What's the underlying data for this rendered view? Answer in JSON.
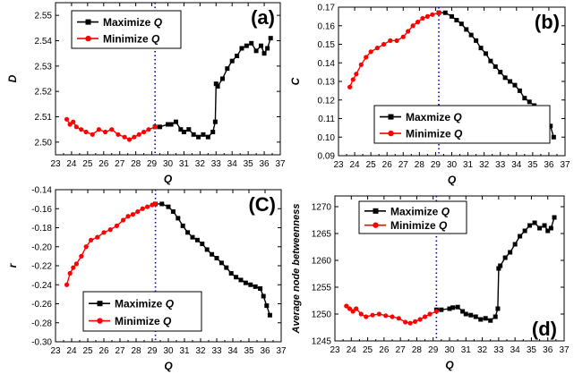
{
  "figure": {
    "colors": {
      "maximize": "#000000",
      "minimize": "#ff0000",
      "divider": "#0000cc",
      "axis": "#000000"
    }
  },
  "chart_data": [
    {
      "type": "line",
      "panel_label": "(a)",
      "xlabel": "Q",
      "ylabel": "D",
      "xlim": [
        23,
        37
      ],
      "ylim": [
        2.495,
        2.555
      ],
      "xticks": [
        23,
        24,
        25,
        26,
        27,
        28,
        29,
        30,
        31,
        32,
        33,
        34,
        35,
        36,
        37
      ],
      "yticks": [
        2.5,
        2.51,
        2.52,
        2.53,
        2.54,
        2.55
      ],
      "ytick_labels": [
        "2.50",
        "2.51",
        "2.52",
        "2.53",
        "2.54",
        "2.55"
      ],
      "divider_x": 29.2,
      "legend_position": "top-left",
      "legend": [
        {
          "label_prefix": "Maximize ",
          "label_var": "Q",
          "series": 0
        },
        {
          "label_prefix": "Minimize ",
          "label_var": "Q",
          "series": 1
        }
      ],
      "series": [
        {
          "name": "Maximize Q",
          "color": "#000000",
          "x": [
            29.2,
            29.5,
            30.0,
            30.2,
            30.5,
            30.8,
            31.0,
            31.3,
            31.6,
            31.9,
            32.2,
            32.5,
            32.8,
            32.95,
            33.0,
            33.1,
            33.4,
            33.7,
            34.0,
            34.3,
            34.6,
            34.9,
            35.2,
            35.5,
            35.8,
            36.0,
            36.2,
            36.4
          ],
          "y": [
            2.506,
            2.506,
            2.507,
            2.507,
            2.508,
            2.505,
            2.504,
            2.505,
            2.503,
            2.502,
            2.503,
            2.502,
            2.504,
            2.508,
            2.523,
            2.522,
            2.525,
            2.529,
            2.532,
            2.534,
            2.537,
            2.538,
            2.539,
            2.536,
            2.538,
            2.535,
            2.537,
            2.541
          ]
        },
        {
          "name": "Minimize Q",
          "color": "#ff0000",
          "x": [
            23.7,
            23.9,
            24.1,
            24.3,
            24.6,
            24.9,
            25.3,
            25.7,
            26.1,
            26.5,
            26.9,
            27.3,
            27.6,
            27.9,
            28.2,
            28.5,
            28.8,
            29.2
          ],
          "y": [
            2.509,
            2.507,
            2.508,
            2.506,
            2.505,
            2.504,
            2.503,
            2.505,
            2.504,
            2.505,
            2.503,
            2.502,
            2.501,
            2.502,
            2.503,
            2.504,
            2.505,
            2.506
          ]
        }
      ]
    },
    {
      "type": "line",
      "panel_label": "(b)",
      "xlabel": "Q",
      "ylabel": "C",
      "xlim": [
        23,
        37
      ],
      "ylim": [
        0.09,
        0.17
      ],
      "xticks": [
        23,
        24,
        25,
        26,
        27,
        28,
        29,
        30,
        31,
        32,
        33,
        34,
        35,
        36,
        37
      ],
      "yticks": [
        0.09,
        0.1,
        0.11,
        0.12,
        0.13,
        0.14,
        0.15,
        0.16,
        0.17
      ],
      "ytick_labels": [
        "0.09",
        "0.10",
        "0.11",
        "0.12",
        "0.13",
        "0.14",
        "0.15",
        "0.16",
        "0.17"
      ],
      "divider_x": 29.2,
      "legend_position": "bottom-right",
      "legend": [
        {
          "label_prefix": "Maxmize ",
          "label_var": "Q",
          "series": 0
        },
        {
          "label_prefix": "Minimize ",
          "label_var": "Q",
          "series": 1
        }
      ],
      "series": [
        {
          "name": "Maxmize Q",
          "color": "#000000",
          "x": [
            29.2,
            29.6,
            30.0,
            30.3,
            30.6,
            30.9,
            31.2,
            31.5,
            31.8,
            32.1,
            32.4,
            32.7,
            33.0,
            33.3,
            33.6,
            33.9,
            34.2,
            34.5,
            34.8,
            35.1,
            35.4,
            35.7,
            35.9,
            36.1,
            36.3
          ],
          "y": [
            0.167,
            0.167,
            0.165,
            0.163,
            0.161,
            0.158,
            0.155,
            0.152,
            0.148,
            0.145,
            0.141,
            0.138,
            0.135,
            0.132,
            0.13,
            0.128,
            0.125,
            0.121,
            0.119,
            0.117,
            0.115,
            0.113,
            0.11,
            0.106,
            0.1
          ]
        },
        {
          "name": "Minimize Q",
          "color": "#ff0000",
          "x": [
            23.7,
            23.9,
            24.1,
            24.4,
            24.7,
            25.0,
            25.4,
            25.8,
            26.2,
            26.6,
            27.0,
            27.3,
            27.6,
            27.9,
            28.2,
            28.5,
            28.8,
            29.2
          ],
          "y": [
            0.127,
            0.131,
            0.134,
            0.139,
            0.143,
            0.146,
            0.148,
            0.15,
            0.152,
            0.152,
            0.154,
            0.157,
            0.16,
            0.162,
            0.164,
            0.165,
            0.166,
            0.167
          ]
        }
      ]
    },
    {
      "type": "line",
      "panel_label": "(C)",
      "xlabel": "Q",
      "ylabel": "r",
      "xlim": [
        23,
        37
      ],
      "ylim": [
        -0.3,
        -0.14
      ],
      "xticks": [
        23,
        24,
        25,
        26,
        27,
        28,
        29,
        30,
        31,
        32,
        33,
        34,
        35,
        36,
        37
      ],
      "yticks": [
        -0.3,
        -0.28,
        -0.26,
        -0.24,
        -0.22,
        -0.2,
        -0.18,
        -0.16,
        -0.14
      ],
      "ytick_labels": [
        "-0.30",
        "-0.28",
        "-0.26",
        "-0.24",
        "-0.22",
        "-0.20",
        "-0.18",
        "-0.16",
        "-0.14"
      ],
      "divider_x": 29.2,
      "legend_position": "bottom-left",
      "legend": [
        {
          "label_prefix": "Maximize ",
          "label_var": "Q",
          "series": 0
        },
        {
          "label_prefix": "Minimize ",
          "label_var": "Q",
          "series": 1
        }
      ],
      "series": [
        {
          "name": "Maximize Q",
          "color": "#000000",
          "x": [
            29.2,
            29.6,
            30.0,
            30.3,
            30.6,
            30.9,
            31.2,
            31.5,
            31.8,
            32.1,
            32.4,
            32.7,
            33.0,
            33.3,
            33.6,
            33.9,
            34.2,
            34.5,
            34.8,
            35.1,
            35.4,
            35.7,
            35.9,
            36.1,
            36.3
          ],
          "y": [
            -0.155,
            -0.155,
            -0.158,
            -0.163,
            -0.17,
            -0.178,
            -0.185,
            -0.19,
            -0.193,
            -0.197,
            -0.203,
            -0.208,
            -0.212,
            -0.217,
            -0.222,
            -0.228,
            -0.232,
            -0.235,
            -0.238,
            -0.24,
            -0.242,
            -0.244,
            -0.252,
            -0.262,
            -0.272
          ]
        },
        {
          "name": "Minimize Q",
          "color": "#ff0000",
          "x": [
            23.7,
            23.9,
            24.1,
            24.3,
            24.6,
            24.9,
            25.2,
            25.6,
            26.0,
            26.4,
            26.8,
            27.2,
            27.5,
            27.8,
            28.1,
            28.4,
            28.7,
            29.0,
            29.2
          ],
          "y": [
            -0.24,
            -0.228,
            -0.222,
            -0.218,
            -0.21,
            -0.2,
            -0.193,
            -0.19,
            -0.185,
            -0.182,
            -0.178,
            -0.172,
            -0.168,
            -0.166,
            -0.163,
            -0.16,
            -0.158,
            -0.156,
            -0.155
          ]
        }
      ]
    },
    {
      "type": "line",
      "panel_label": "(d)",
      "xlabel": "Q",
      "ylabel": "Average node betweenness",
      "xlim": [
        23,
        37
      ],
      "ylim": [
        1245,
        1272
      ],
      "xticks": [
        23,
        24,
        25,
        26,
        27,
        28,
        29,
        30,
        31,
        32,
        33,
        34,
        35,
        36,
        37
      ],
      "yticks": [
        1245,
        1250,
        1255,
        1260,
        1265,
        1270
      ],
      "ytick_labels": [
        "1245",
        "1250",
        "1255",
        "1260",
        "1265",
        "1270"
      ],
      "divider_x": 29.2,
      "legend_position": "top-left",
      "legend": [
        {
          "label_prefix": "Maximize ",
          "label_var": "Q",
          "series": 0
        },
        {
          "label_prefix": "Minimize ",
          "label_var": "Q",
          "series": 1
        }
      ],
      "series": [
        {
          "name": "Maximize Q",
          "color": "#000000",
          "x": [
            29.2,
            29.5,
            30.0,
            30.2,
            30.5,
            30.8,
            31.0,
            31.3,
            31.6,
            31.9,
            32.2,
            32.5,
            32.8,
            32.95,
            33.0,
            33.1,
            33.4,
            33.7,
            34.0,
            34.3,
            34.6,
            34.9,
            35.2,
            35.5,
            35.8,
            36.0,
            36.2,
            36.4
          ],
          "y": [
            1250.8,
            1250.8,
            1251.0,
            1251.2,
            1251.3,
            1250.5,
            1250.0,
            1249.8,
            1249.5,
            1249.0,
            1249.2,
            1248.8,
            1249.5,
            1251.0,
            1258.5,
            1259.0,
            1260.5,
            1261.5,
            1263.0,
            1264.5,
            1265.5,
            1266.5,
            1267.0,
            1266.0,
            1266.5,
            1265.5,
            1266.0,
            1268.0
          ]
        },
        {
          "name": "Minimize Q",
          "color": "#ff0000",
          "x": [
            23.7,
            23.9,
            24.1,
            24.3,
            24.6,
            24.9,
            25.3,
            25.7,
            26.1,
            26.5,
            26.9,
            27.3,
            27.6,
            27.9,
            28.2,
            28.5,
            28.8,
            29.2
          ],
          "y": [
            1251.5,
            1251.0,
            1250.5,
            1251.0,
            1250.0,
            1249.5,
            1249.8,
            1250.0,
            1249.7,
            1249.5,
            1249.2,
            1248.5,
            1248.3,
            1248.6,
            1249.0,
            1249.5,
            1250.0,
            1250.5
          ]
        }
      ]
    }
  ]
}
